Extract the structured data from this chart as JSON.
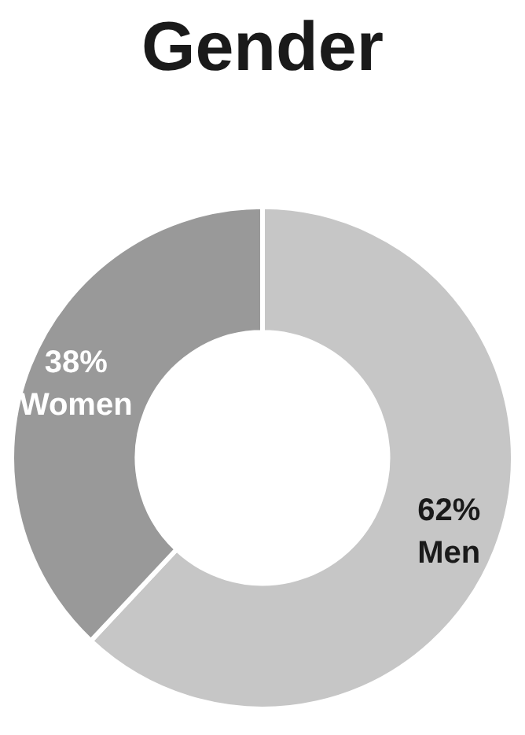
{
  "chart_data": {
    "type": "donut",
    "title": "Gender",
    "categories": [
      "Men",
      "Women"
    ],
    "values": [
      62,
      38
    ],
    "colors": [
      "#c6c6c6",
      "#999999"
    ],
    "value_labels": [
      "62%",
      "38%"
    ],
    "legend": false
  }
}
